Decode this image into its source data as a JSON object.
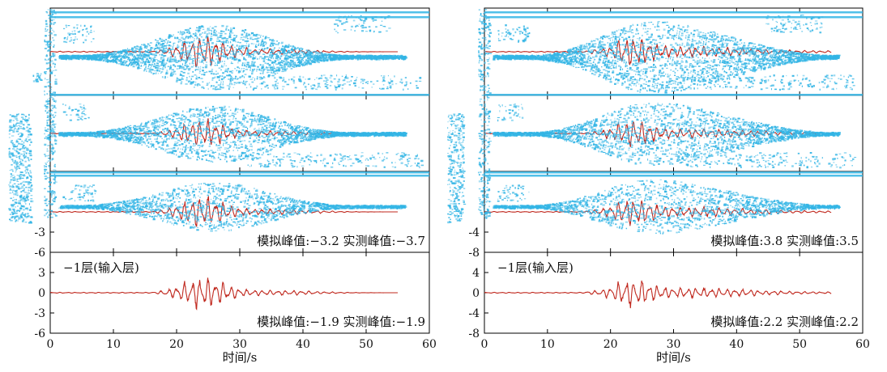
{
  "colors": {
    "trace": "#c0281e",
    "noise": "#33b5e5",
    "axis": "#000000"
  },
  "chart_data": [
    {
      "type": "line",
      "xlabel": "时间/s",
      "xlim": [
        0,
        60
      ],
      "xticks": [
        0,
        10,
        20,
        30,
        40,
        50,
        60
      ],
      "panels": [
        {
          "ylim": [
            -6,
            6
          ],
          "yticks": [],
          "text_left": "",
          "text_right": ""
        },
        {
          "ylim": [
            -6,
            6
          ],
          "yticks": [],
          "text_left": "",
          "text_right": ""
        },
        {
          "ylim": [
            -6,
            6
          ],
          "yticks": [
            -3,
            -6
          ],
          "text_left": "",
          "text_right": "模拟峰值:−3.2 实测峰值:−3.7"
        },
        {
          "ylim": [
            -6,
            6
          ],
          "yticks": [
            3,
            0,
            -3,
            -6
          ],
          "text_left": "−1层(输入层)",
          "text_right": "模拟峰值:−1.9 实测峰值:−1.9"
        }
      ]
    },
    {
      "type": "line",
      "xlabel": "时间/s",
      "xlim": [
        0,
        60
      ],
      "xticks": [
        0,
        10,
        20,
        30,
        40,
        50,
        60
      ],
      "panels": [
        {
          "ylim": [
            -8,
            8
          ],
          "yticks": [],
          "text_left": "",
          "text_right": ""
        },
        {
          "ylim": [
            -8,
            8
          ],
          "yticks": [],
          "text_left": "",
          "text_right": ""
        },
        {
          "ylim": [
            -8,
            8
          ],
          "yticks": [
            -4,
            -8
          ],
          "text_left": "",
          "text_right": "模拟峰值:3.8 实测峰值:3.5"
        },
        {
          "ylim": [
            -8,
            8
          ],
          "yticks": [
            4,
            0,
            -4,
            -8
          ],
          "text_left": "−1层(输入层)",
          "text_right": "模拟峰值:2.2 实测峰值:2.2"
        }
      ]
    }
  ]
}
